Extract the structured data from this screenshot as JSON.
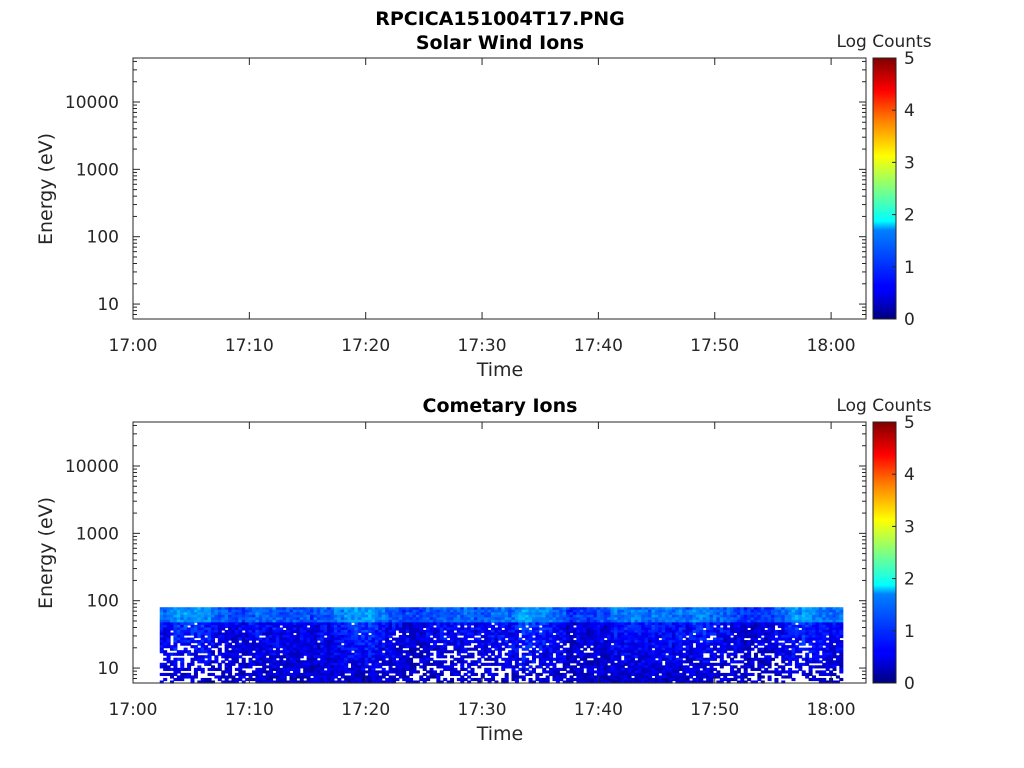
{
  "figure_title": "RPCICA151004T17.PNG",
  "chart_data": [
    {
      "type": "heatmap",
      "title": "Solar Wind Ions",
      "xlabel": "Time",
      "ylabel": "Energy (eV)",
      "x_ticks": [
        "17:00",
        "17:10",
        "17:20",
        "17:30",
        "17:40",
        "17:50",
        "18:00"
      ],
      "y_ticks": [
        "10",
        "100",
        "1000",
        "10000"
      ],
      "y_scale": "log",
      "ylim": [
        6,
        45000
      ],
      "xlim": [
        "17:00",
        "18:03"
      ],
      "colorbar": {
        "label": "Log Counts",
        "ticks": [
          "0",
          "1",
          "2",
          "3",
          "4",
          "5"
        ],
        "range": [
          0,
          5
        ],
        "colormap": "jet"
      },
      "data_extent": null
    },
    {
      "type": "heatmap",
      "title": "Cometary Ions",
      "xlabel": "Time",
      "ylabel": "Energy (eV)",
      "x_ticks": [
        "17:00",
        "17:10",
        "17:20",
        "17:30",
        "17:40",
        "17:50",
        "18:00"
      ],
      "y_ticks": [
        "10",
        "100",
        "1000",
        "10000"
      ],
      "y_scale": "log",
      "ylim": [
        6,
        45000
      ],
      "xlim": [
        "17:00",
        "18:03"
      ],
      "colorbar": {
        "label": "Log Counts",
        "ticks": [
          "0",
          "1",
          "2",
          "3",
          "4",
          "5"
        ],
        "range": [
          0,
          5
        ],
        "colormap": "jet"
      },
      "data_extent": {
        "time_start": "17:02.3",
        "time_end": "18:01",
        "energy_min_eV": 6,
        "energy_max_eV": 80,
        "typical_log_counts": [
          0,
          1.8
        ]
      }
    }
  ]
}
